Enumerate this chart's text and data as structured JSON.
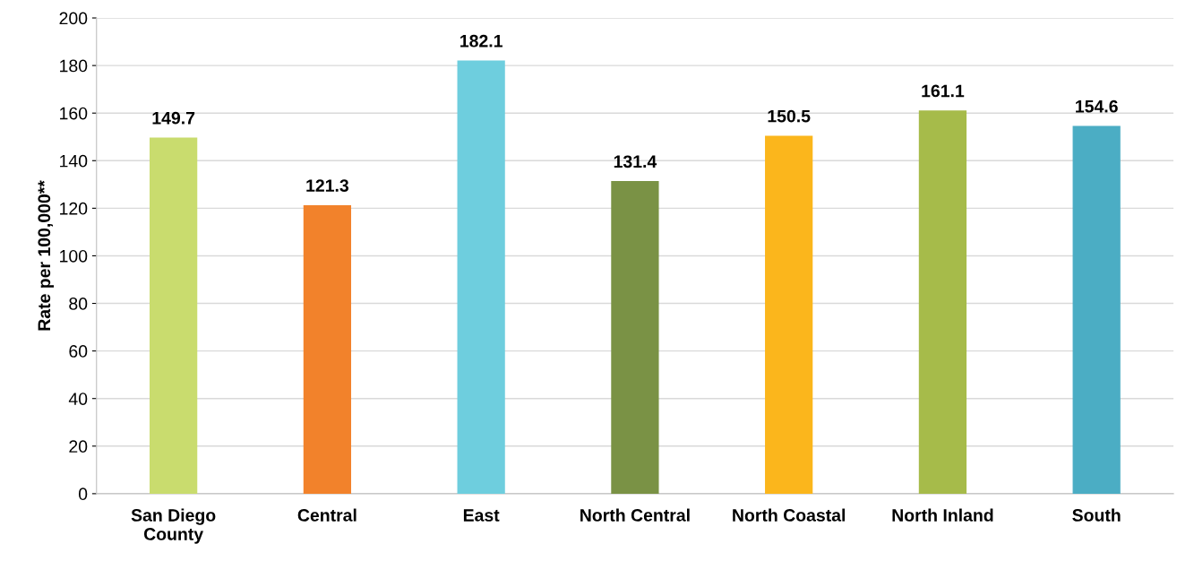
{
  "chart_data": {
    "type": "bar",
    "ylabel": "Rate per 100,000**",
    "categories": [
      "San Diego\nCounty",
      "Central",
      "East",
      "North Central",
      "North Coastal",
      "North Inland",
      "South"
    ],
    "values": [
      149.7,
      121.3,
      182.1,
      131.4,
      150.5,
      161.1,
      154.6
    ],
    "colors": [
      "#c9dc6e",
      "#f2822b",
      "#6ecede",
      "#7a9245",
      "#fbb61c",
      "#a6bb4a",
      "#4badc4"
    ],
    "ylim": [
      0,
      200
    ],
    "yticks": [
      0,
      20,
      40,
      60,
      80,
      100,
      120,
      140,
      160,
      180,
      200
    ],
    "grid": "y",
    "data_labels": true
  }
}
